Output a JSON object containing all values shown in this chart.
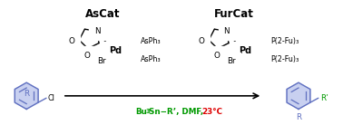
{
  "background_color": "#ffffff",
  "title_ascat": "AsCat",
  "title_furcat": "FurCat",
  "struct_color": "#000000",
  "blue_color": "#6070c0",
  "blue_fill": "#c8d0f0",
  "green_color": "#009900",
  "red_color": "#dd0000",
  "label_fontsize": 6.5,
  "small_fontsize": 5.8,
  "title_fontsize": 8.5,
  "reagent_text": "Bu",
  "reagent_sub": "3",
  "reagent_rest": "Sn−R’, DMF, ",
  "temp_text": "23°C"
}
